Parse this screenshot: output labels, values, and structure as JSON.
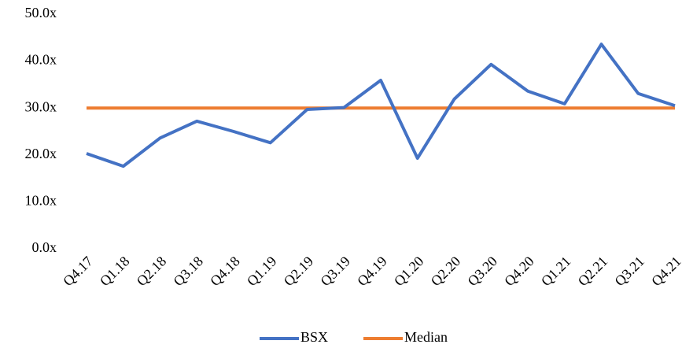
{
  "chart_data": {
    "type": "line",
    "categories": [
      "Q4.17",
      "Q1.18",
      "Q2.18",
      "Q3.18",
      "Q4.18",
      "Q1.19",
      "Q2.19",
      "Q3.19",
      "Q4.19",
      "Q1.20",
      "Q2.20",
      "Q3.20",
      "Q4.20",
      "Q1.21",
      "Q2.21",
      "Q3.21",
      "Q4.21"
    ],
    "series": [
      {
        "name": "BSX",
        "color": "#4472c4",
        "values": [
          20.3,
          17.6,
          23.6,
          27.2,
          25.0,
          22.6,
          29.7,
          30.1,
          35.9,
          19.3,
          31.9,
          39.3,
          33.6,
          30.9,
          43.6,
          33.1,
          30.5
        ]
      },
      {
        "name": "Median",
        "color": "#ed7d31",
        "values": [
          30,
          30,
          30,
          30,
          30,
          30,
          30,
          30,
          30,
          30,
          30,
          30,
          30,
          30,
          30,
          30,
          30
        ]
      }
    ],
    "ylim": [
      0,
      50
    ],
    "yticks": [
      {
        "value": 0,
        "label": "0.0x"
      },
      {
        "value": 10,
        "label": "10.0x"
      },
      {
        "value": 20,
        "label": "20.0x"
      },
      {
        "value": 30,
        "label": "30.0x"
      },
      {
        "value": 40,
        "label": "40.0x"
      },
      {
        "value": 50,
        "label": "50.0x"
      }
    ],
    "grid": false,
    "legend": "bottom"
  }
}
